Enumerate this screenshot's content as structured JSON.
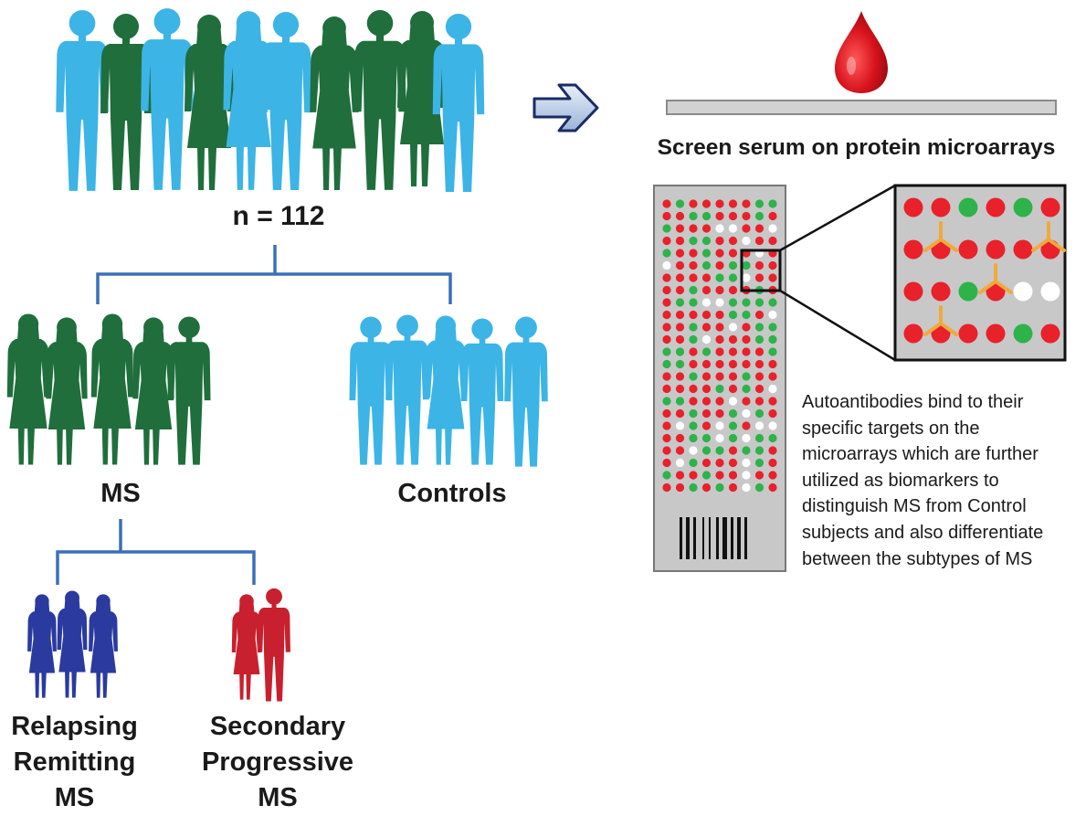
{
  "colors": {
    "light_blue": "#3cb4e6",
    "dark_green": "#1f6e3c",
    "navy": "#2a3a9e",
    "crimson": "#c8202e",
    "connector": "#3a70b8",
    "spot_red": "#e8212b",
    "spot_green": "#2eb24a",
    "antibody": "#f0a93b",
    "slide_gray": "#c8c8c8"
  },
  "icons": {
    "people": "person-silhouette-icon",
    "arrow": "right-arrow-icon",
    "drop": "blood-drop-icon",
    "barcode": "barcode-icon",
    "antibody": "y-antibody-icon"
  },
  "labels": {
    "n": "n = 112",
    "ms": "MS",
    "controls": "Controls",
    "screen_title": "Screen serum on protein microarrays",
    "rr_lines": [
      "Relapsing",
      "Remitting",
      "MS"
    ],
    "sp_lines": [
      "Secondary",
      "Progressive",
      "MS"
    ]
  },
  "description": [
    "Autoantibodies bind to their",
    "specific targets on the",
    "microarrays which are further",
    "utilized as biomarkers to",
    "distinguish MS from Control",
    "subjects and also differentiate",
    "between the subtypes of MS"
  ]
}
